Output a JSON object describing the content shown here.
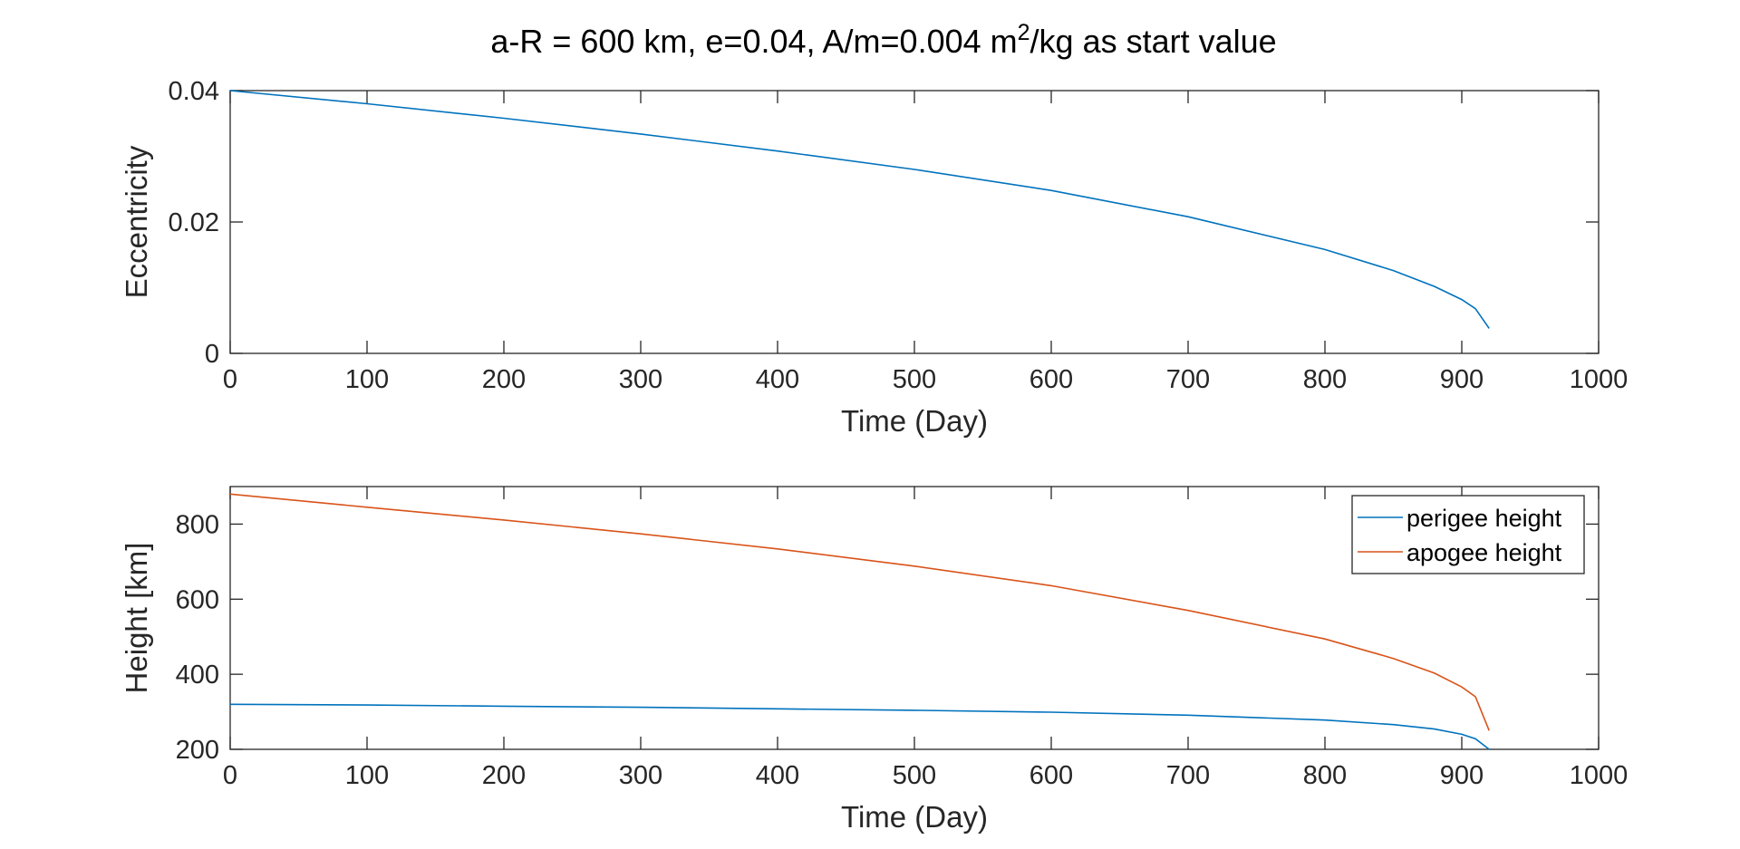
{
  "chart_data": [
    {
      "type": "line",
      "title": "a-R = 600 km, e=0.04, A/m=0.004 m",
      "title_superscript": "2",
      "title_suffix": "/kg as start value",
      "xlabel": "Time (Day)",
      "ylabel": "Eccentricity",
      "xlim": [
        0,
        1000
      ],
      "ylim": [
        0,
        0.04
      ],
      "xticks": [
        "0",
        "100",
        "200",
        "300",
        "400",
        "500",
        "600",
        "700",
        "800",
        "900",
        "1000"
      ],
      "yticks": [
        "0",
        "0.02",
        "0.04"
      ],
      "grid": false,
      "series": [
        {
          "color": "#0072BD",
          "x": [
            0,
            100,
            200,
            300,
            400,
            500,
            600,
            700,
            800,
            850,
            880,
            900,
            910,
            920
          ],
          "y": [
            0.04,
            0.038,
            0.0358,
            0.0334,
            0.0308,
            0.028,
            0.0248,
            0.0208,
            0.0158,
            0.0126,
            0.0102,
            0.0082,
            0.0068,
            0.0038
          ]
        }
      ]
    },
    {
      "type": "line",
      "xlabel": "Time (Day)",
      "ylabel": "Height [km]",
      "xlim": [
        0,
        1000
      ],
      "ylim": [
        200,
        900
      ],
      "xticks": [
        "0",
        "100",
        "200",
        "300",
        "400",
        "500",
        "600",
        "700",
        "800",
        "900",
        "1000"
      ],
      "yticks": [
        "200",
        "400",
        "600",
        "800"
      ],
      "grid": false,
      "legend_location": "top-right",
      "series": [
        {
          "name": "perigee height",
          "color": "#0072BD",
          "x": [
            0,
            100,
            200,
            300,
            400,
            500,
            600,
            700,
            800,
            850,
            880,
            900,
            910,
            920
          ],
          "y": [
            320,
            318,
            315,
            312,
            308,
            304,
            299,
            291,
            278,
            266,
            254,
            240,
            228,
            200
          ]
        },
        {
          "name": "apogee height",
          "color": "#D95319",
          "x": [
            0,
            100,
            200,
            300,
            400,
            500,
            600,
            700,
            800,
            850,
            880,
            900,
            910,
            920
          ],
          "y": [
            880,
            845,
            811,
            774,
            734,
            688,
            636,
            570,
            494,
            442,
            403,
            366,
            340,
            250
          ]
        }
      ]
    }
  ]
}
